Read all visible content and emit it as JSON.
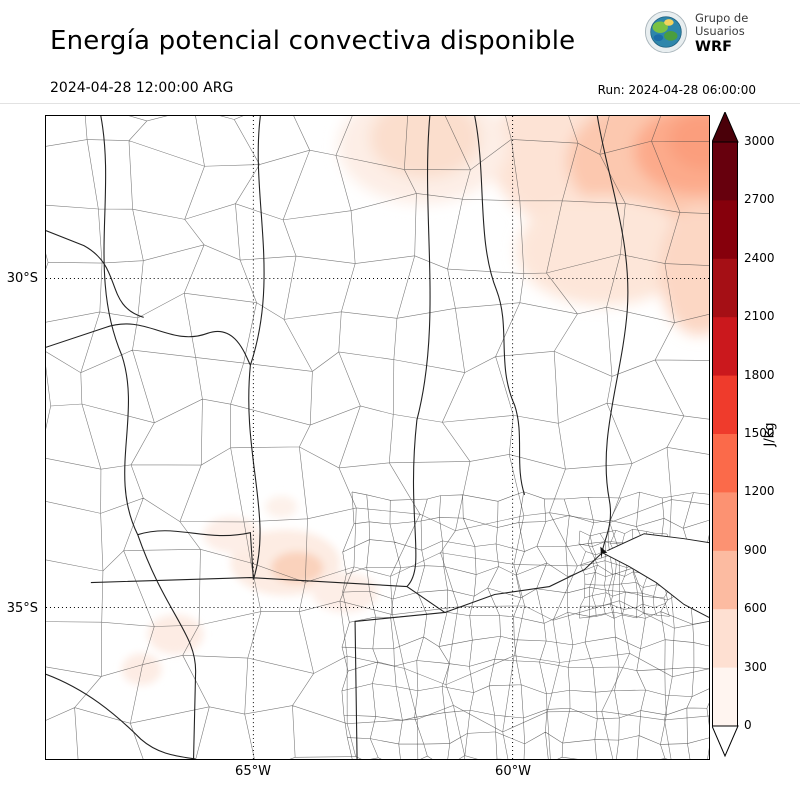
{
  "header": {
    "title": "Energía potencial convectiva disponible",
    "valid_time": "2024-04-28 12:00:00 ARG",
    "run_label": "Run: 2024-04-28 06:00:00",
    "logo": {
      "line1": "Grupo de",
      "line2": "Usuarios",
      "line3": "WRF"
    }
  },
  "map": {
    "lat_labels": [
      "30°S",
      "35°S"
    ],
    "lon_labels": [
      "65°W",
      "60°W"
    ]
  },
  "colorbar": {
    "unit": "J/kg",
    "vmin": 0,
    "vmax": 3000,
    "ticks": [
      0,
      300,
      600,
      900,
      1200,
      1500,
      1800,
      2100,
      2400,
      2700,
      3000
    ],
    "segment_colors": [
      "#fff5f0",
      "#fee0d2",
      "#fcbba1",
      "#fc9272",
      "#fb6a4a",
      "#ef3b2c",
      "#cb181d",
      "#a50f15",
      "#86000c",
      "#67000d"
    ],
    "over_color": "#4a0009",
    "under_color": "#ffffff"
  },
  "chart_data": {
    "type": "heatmap",
    "title": "Energía potencial convectiva disponible",
    "units": "J/kg",
    "colorbar_range": [
      0,
      3000
    ],
    "colorbar_step": 300,
    "gridlines": {
      "latitudes": [
        "30°S",
        "35°S"
      ],
      "longitudes": [
        "65°W",
        "60°W"
      ],
      "style": "dotted"
    },
    "regions": [
      {
        "area": "northeast corner of domain (top-right)",
        "cape_estimate_jkg": "300-900"
      },
      {
        "area": "top-center near northern edge",
        "cape_estimate_jkg": "0-300"
      },
      {
        "area": "scattered central-south patches",
        "cape_estimate_jkg": "0-300"
      },
      {
        "area": "remainder of domain",
        "cape_estimate_jkg": "~0"
      }
    ]
  }
}
